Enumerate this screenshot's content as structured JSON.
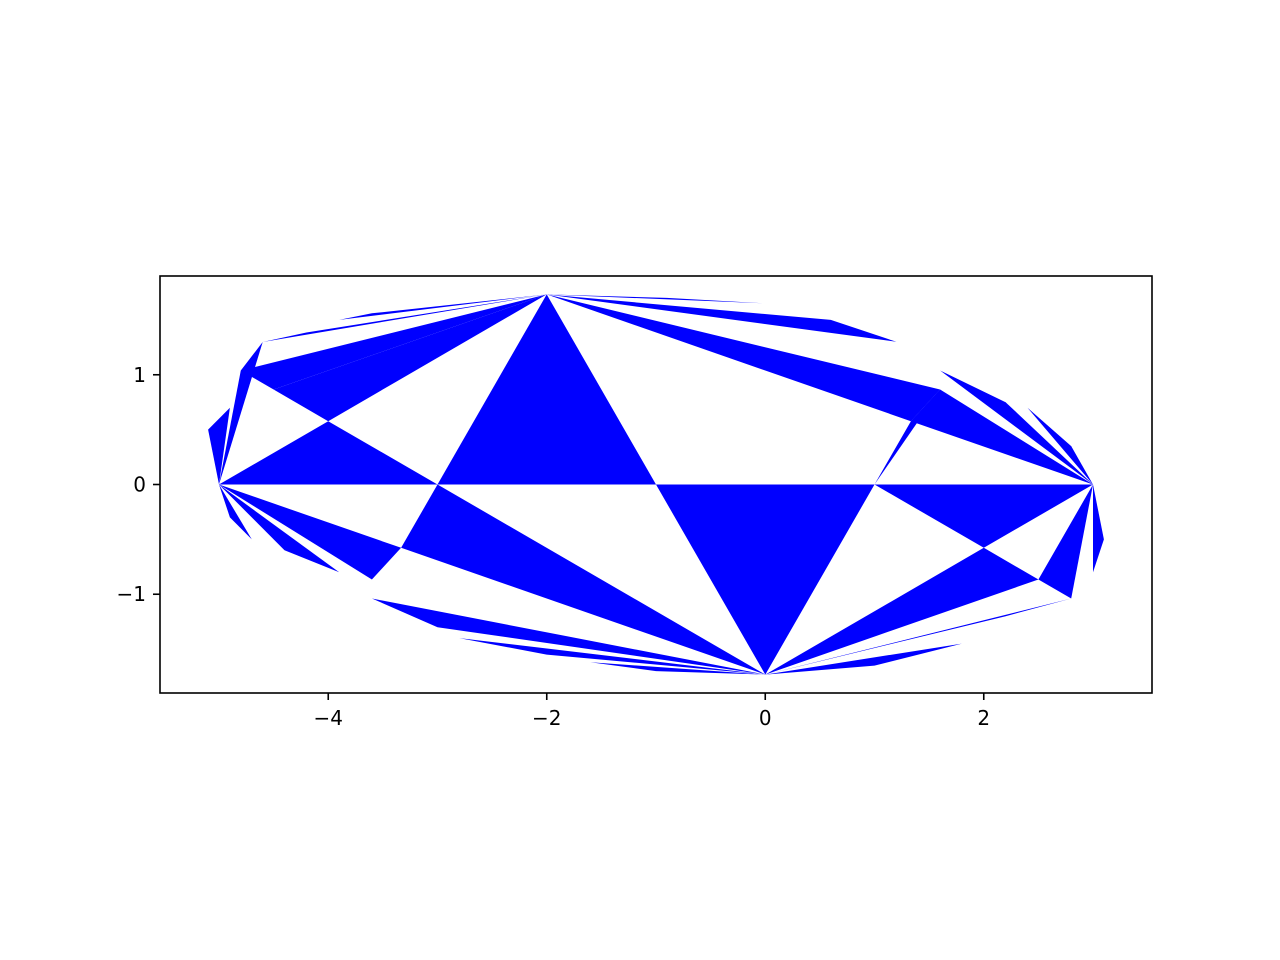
{
  "chart_data": {
    "type": "triangle-fill",
    "title": "",
    "xlabel": "",
    "ylabel": "",
    "xlim": [
      -5.54,
      3.54
    ],
    "ylim": [
      -1.9,
      1.9
    ],
    "x_ticks": [
      {
        "value": -4,
        "label": "−4"
      },
      {
        "value": -2,
        "label": "−2"
      },
      {
        "value": 0,
        "label": "0"
      },
      {
        "value": 2,
        "label": "2"
      }
    ],
    "y_ticks": [
      {
        "value": 1,
        "label": "1"
      },
      {
        "value": 0,
        "label": "0"
      },
      {
        "value": -1,
        "label": "−1"
      }
    ],
    "grid": false,
    "fill_color": "#0000ff",
    "background_color": "#ffffff",
    "triangles": [
      [
        [
          -2,
          1.732
        ],
        [
          -3,
          0
        ],
        [
          -1,
          0
        ]
      ],
      [
        [
          0,
          -1.732
        ],
        [
          -1,
          0
        ],
        [
          1,
          0
        ]
      ],
      [
        [
          -5,
          0
        ],
        [
          -4,
          0.577
        ],
        [
          -3,
          0
        ]
      ],
      [
        [
          -3,
          0
        ],
        [
          -3.333,
          -0.577
        ],
        [
          0,
          -1.732
        ]
      ],
      [
        [
          3,
          0
        ],
        [
          1,
          0
        ],
        [
          2,
          -0.577
        ]
      ],
      [
        [
          1,
          0
        ],
        [
          1.333,
          0.577
        ],
        [
          1.6,
          0.866
        ]
      ],
      [
        [
          -2,
          1.732
        ],
        [
          -4.5,
          0.866
        ],
        [
          -4,
          0.577
        ]
      ],
      [
        [
          -2,
          1.732
        ],
        [
          -4.8,
          1.039
        ],
        [
          -4.5,
          0.866
        ]
      ],
      [
        [
          -2,
          1.732
        ],
        [
          -4.6,
          1.299
        ],
        [
          -4.2,
          1.385
        ]
      ],
      [
        [
          -2,
          1.732
        ],
        [
          -3.9,
          1.5
        ],
        [
          -3.6,
          1.56
        ]
      ],
      [
        [
          -5,
          0
        ],
        [
          -4.8,
          1.039
        ],
        [
          -4.6,
          1.299
        ]
      ],
      [
        [
          -5,
          0
        ],
        [
          -5.1,
          0.5
        ],
        [
          -4.9,
          0.7
        ]
      ],
      [
        [
          -5,
          0
        ],
        [
          -3.333,
          -0.577
        ],
        [
          -3.6,
          -0.866
        ]
      ],
      [
        [
          -5,
          0
        ],
        [
          -3.9,
          -0.8
        ],
        [
          -4.4,
          -0.6
        ]
      ],
      [
        [
          -5,
          0
        ],
        [
          -4.7,
          -0.5
        ],
        [
          -4.9,
          -0.3
        ]
      ],
      [
        [
          0,
          -1.732
        ],
        [
          -3.6,
          -1.039
        ],
        [
          -3,
          -1.3
        ]
      ],
      [
        [
          0,
          -1.732
        ],
        [
          -2.8,
          -1.4
        ],
        [
          -2,
          -1.55
        ]
      ],
      [
        [
          0,
          -1.732
        ],
        [
          -1.6,
          -1.62
        ],
        [
          -1,
          -1.7
        ]
      ],
      [
        [
          -2,
          1.732
        ],
        [
          1.6,
          0.866
        ],
        [
          1.333,
          0.577
        ]
      ],
      [
        [
          -2,
          1.732
        ],
        [
          1.2,
          1.3
        ],
        [
          0.6,
          1.5
        ]
      ],
      [
        [
          -2,
          1.732
        ],
        [
          0,
          1.65
        ],
        [
          -0.9,
          1.7
        ]
      ],
      [
        [
          3,
          0
        ],
        [
          1.333,
          0.577
        ],
        [
          1.6,
          0.866
        ]
      ],
      [
        [
          3,
          0
        ],
        [
          1.6,
          1.039
        ],
        [
          2.2,
          0.75
        ]
      ],
      [
        [
          3,
          0
        ],
        [
          2.4,
          0.7
        ],
        [
          2.8,
          0.35
        ]
      ],
      [
        [
          0,
          -1.732
        ],
        [
          2,
          -0.577
        ],
        [
          2.5,
          -0.866
        ]
      ],
      [
        [
          0,
          -1.732
        ],
        [
          2.2,
          -1.2
        ],
        [
          2.8,
          -1.039
        ]
      ],
      [
        [
          0,
          -1.732
        ],
        [
          1.8,
          -1.45
        ],
        [
          1,
          -1.65
        ]
      ],
      [
        [
          3,
          0
        ],
        [
          2.8,
          -1.039
        ],
        [
          2.5,
          -0.866
        ]
      ],
      [
        [
          3,
          0
        ],
        [
          3.1,
          -0.5
        ],
        [
          3,
          -0.8
        ]
      ]
    ]
  }
}
